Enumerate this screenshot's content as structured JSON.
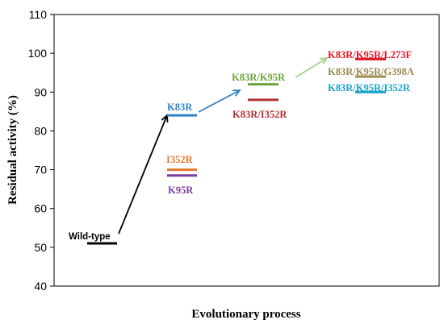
{
  "chart_data": {
    "type": "scatter",
    "title": "",
    "xlabel": "Evolutionary process",
    "ylabel": "Residual activity (%)",
    "ylim": [
      40,
      110
    ],
    "yticks": [
      40,
      50,
      60,
      70,
      80,
      90,
      100,
      110
    ],
    "grid": false,
    "legend": "none",
    "points": [
      {
        "label": "Wild-type",
        "round": 0,
        "y": 51,
        "color": "#000000"
      },
      {
        "label": "K83R",
        "round": 1,
        "y": 84,
        "color": "#2f83c8"
      },
      {
        "label": "I352R",
        "round": 1,
        "y": 70,
        "color": "#e8772e"
      },
      {
        "label": "K95R",
        "round": 1,
        "y": 68.5,
        "color": "#7b3fa0"
      },
      {
        "label": "K83R/K95R",
        "round": 2,
        "y": 92,
        "color": "#6ca33b"
      },
      {
        "label": "K83R/I352R",
        "round": 2,
        "y": 88,
        "color": "#b03035"
      },
      {
        "label": "K83R/K95R/L273F",
        "round": 3,
        "y": 98.5,
        "color": "#e0192a"
      },
      {
        "label": "K83R/K95R/G398A",
        "round": 3,
        "y": 94,
        "color": "#9c8a52"
      },
      {
        "label": "K83R/K95R/I352R",
        "round": 3,
        "y": 90,
        "color": "#1aa3c8"
      }
    ],
    "arrows": [
      {
        "from": "Wild-type",
        "to": "K83R",
        "color": "#000000"
      },
      {
        "from": "K83R",
        "to": "K83R/K95R",
        "color": "#2f83c8"
      },
      {
        "from": "K83R/K95R",
        "to": "K83R/K95R/L273F",
        "color": "#a8d08d"
      }
    ]
  }
}
